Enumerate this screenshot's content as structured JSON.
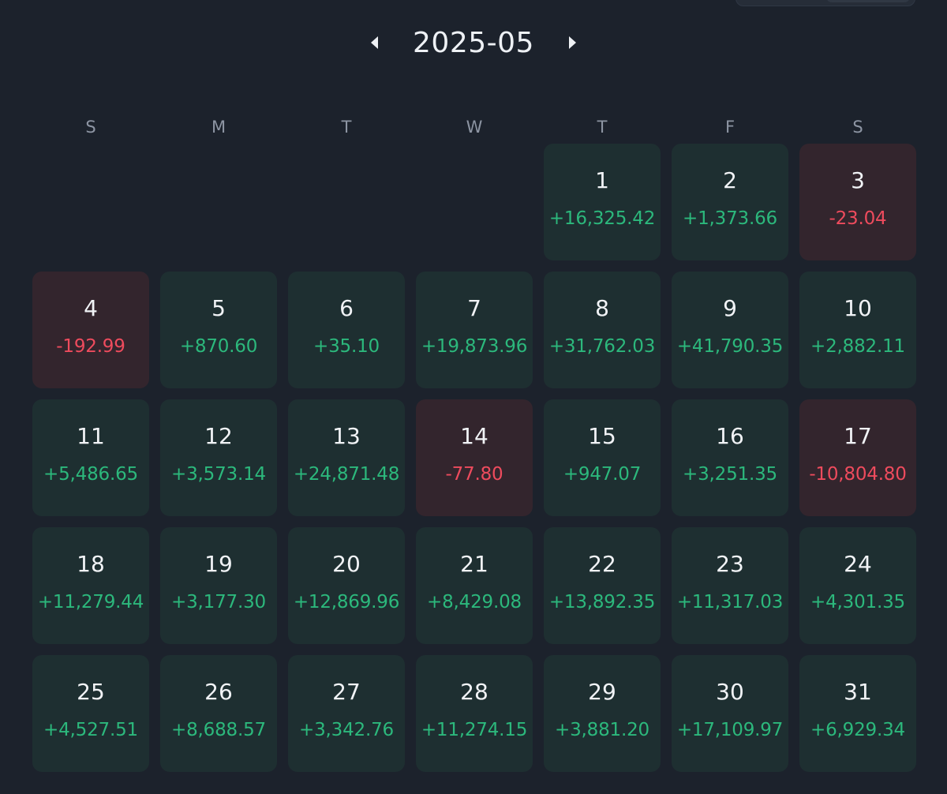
{
  "header": {
    "month_label": "2025-05",
    "prev_icon": "caret-left-icon",
    "next_icon": "caret-right-icon"
  },
  "weekdays": [
    "S",
    "M",
    "T",
    "W",
    "T",
    "F",
    "S"
  ],
  "colors": {
    "gain_text": "#2cb87c",
    "loss_text": "#ee4b5d",
    "gain_bg": "#1e2f31",
    "loss_bg": "#33252d",
    "page_bg": "#1c222c"
  },
  "leading_blank_days": 4,
  "days": [
    {
      "day": "1",
      "pnl": "+16,325.42",
      "type": "gain"
    },
    {
      "day": "2",
      "pnl": "+1,373.66",
      "type": "gain"
    },
    {
      "day": "3",
      "pnl": "-23.04",
      "type": "loss"
    },
    {
      "day": "4",
      "pnl": "-192.99",
      "type": "loss"
    },
    {
      "day": "5",
      "pnl": "+870.60",
      "type": "gain"
    },
    {
      "day": "6",
      "pnl": "+35.10",
      "type": "gain"
    },
    {
      "day": "7",
      "pnl": "+19,873.96",
      "type": "gain"
    },
    {
      "day": "8",
      "pnl": "+31,762.03",
      "type": "gain"
    },
    {
      "day": "9",
      "pnl": "+41,790.35",
      "type": "gain"
    },
    {
      "day": "10",
      "pnl": "+2,882.11",
      "type": "gain"
    },
    {
      "day": "11",
      "pnl": "+5,486.65",
      "type": "gain"
    },
    {
      "day": "12",
      "pnl": "+3,573.14",
      "type": "gain"
    },
    {
      "day": "13",
      "pnl": "+24,871.48",
      "type": "gain"
    },
    {
      "day": "14",
      "pnl": "-77.80",
      "type": "loss"
    },
    {
      "day": "15",
      "pnl": "+947.07",
      "type": "gain"
    },
    {
      "day": "16",
      "pnl": "+3,251.35",
      "type": "gain"
    },
    {
      "day": "17",
      "pnl": "-10,804.80",
      "type": "loss"
    },
    {
      "day": "18",
      "pnl": "+11,279.44",
      "type": "gain"
    },
    {
      "day": "19",
      "pnl": "+3,177.30",
      "type": "gain"
    },
    {
      "day": "20",
      "pnl": "+12,869.96",
      "type": "gain"
    },
    {
      "day": "21",
      "pnl": "+8,429.08",
      "type": "gain"
    },
    {
      "day": "22",
      "pnl": "+13,892.35",
      "type": "gain"
    },
    {
      "day": "23",
      "pnl": "+11,317.03",
      "type": "gain"
    },
    {
      "day": "24",
      "pnl": "+4,301.35",
      "type": "gain"
    },
    {
      "day": "25",
      "pnl": "+4,527.51",
      "type": "gain"
    },
    {
      "day": "26",
      "pnl": "+8,688.57",
      "type": "gain"
    },
    {
      "day": "27",
      "pnl": "+3,342.76",
      "type": "gain"
    },
    {
      "day": "28",
      "pnl": "+11,274.15",
      "type": "gain"
    },
    {
      "day": "29",
      "pnl": "+3,881.20",
      "type": "gain"
    },
    {
      "day": "30",
      "pnl": "+17,109.97",
      "type": "gain"
    },
    {
      "day": "31",
      "pnl": "+6,929.34",
      "type": "gain"
    }
  ]
}
